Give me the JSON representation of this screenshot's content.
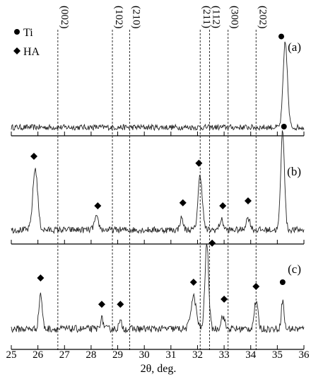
{
  "chart_data": {
    "type": "line",
    "xlabel": "2θ, deg.",
    "xlim": [
      25,
      36
    ],
    "x_ticks": [
      "25",
      "26",
      "27",
      "28",
      "29",
      "30",
      "31",
      "32",
      "33",
      "34",
      "35",
      "36"
    ],
    "legend": [
      {
        "marker": "●",
        "label": "Ti"
      },
      {
        "marker": "◆",
        "label": "HA"
      }
    ],
    "reference_lines": [
      {
        "label": "(002)",
        "x": 26.75
      },
      {
        "label": "(102)",
        "x": 28.8
      },
      {
        "label": "(210)",
        "x": 29.45
      },
      {
        "label": "(211)",
        "x": 32.1
      },
      {
        "label": "(112)",
        "x": 32.45
      },
      {
        "label": "(300)",
        "x": 33.15
      },
      {
        "label": "(202)",
        "x": 34.2
      }
    ],
    "series": [
      {
        "name": "(a)",
        "peaks": [
          {
            "x": 35.3,
            "height": 1.0,
            "width": 0.08
          }
        ],
        "markers": [
          {
            "type": "Ti",
            "x": 35.15,
            "y": 1.02
          }
        ]
      },
      {
        "name": "(b)",
        "peaks": [
          {
            "x": 25.9,
            "height": 0.62,
            "width": 0.09
          },
          {
            "x": 28.2,
            "height": 0.12,
            "width": 0.08
          },
          {
            "x": 31.4,
            "height": 0.12,
            "width": 0.06
          },
          {
            "x": 32.1,
            "height": 0.55,
            "width": 0.08
          },
          {
            "x": 32.9,
            "height": 0.1,
            "width": 0.07
          },
          {
            "x": 33.9,
            "height": 0.12,
            "width": 0.08
          },
          {
            "x": 35.2,
            "height": 1.0,
            "width": 0.07
          }
        ],
        "markers": [
          {
            "type": "HA",
            "x": 25.85,
            "y": 0.7
          },
          {
            "type": "HA",
            "x": 28.25,
            "y": 0.2
          },
          {
            "type": "HA",
            "x": 31.45,
            "y": 0.23
          },
          {
            "type": "HA",
            "x": 32.05,
            "y": 0.63
          },
          {
            "type": "HA",
            "x": 32.95,
            "y": 0.2
          },
          {
            "type": "HA",
            "x": 33.9,
            "y": 0.25
          },
          {
            "type": "Ti",
            "x": 35.25,
            "y": 1.0
          }
        ]
      },
      {
        "name": "(c)",
        "peaks": [
          {
            "x": 26.1,
            "height": 0.42,
            "width": 0.06
          },
          {
            "x": 28.4,
            "height": 0.12,
            "width": 0.06
          },
          {
            "x": 29.1,
            "height": 0.08,
            "width": 0.06
          },
          {
            "x": 31.85,
            "height": 0.38,
            "width": 0.1
          },
          {
            "x": 32.35,
            "height": 1.0,
            "width": 0.07
          },
          {
            "x": 32.95,
            "height": 0.15,
            "width": 0.07
          },
          {
            "x": 34.2,
            "height": 0.32,
            "width": 0.07
          },
          {
            "x": 35.2,
            "height": 0.34,
            "width": 0.05
          }
        ],
        "markers": [
          {
            "type": "HA",
            "x": 26.1,
            "y": 0.55
          },
          {
            "type": "HA",
            "x": 28.4,
            "y": 0.24
          },
          {
            "type": "HA",
            "x": 29.1,
            "y": 0.24
          },
          {
            "type": "HA",
            "x": 31.85,
            "y": 0.5
          },
          {
            "type": "HA",
            "x": 32.55,
            "y": 0.96
          },
          {
            "type": "HA",
            "x": 33.0,
            "y": 0.3
          },
          {
            "type": "HA",
            "x": 34.2,
            "y": 0.45
          },
          {
            "type": "Ti",
            "x": 35.2,
            "y": 0.5
          }
        ]
      }
    ],
    "grid": false
  }
}
